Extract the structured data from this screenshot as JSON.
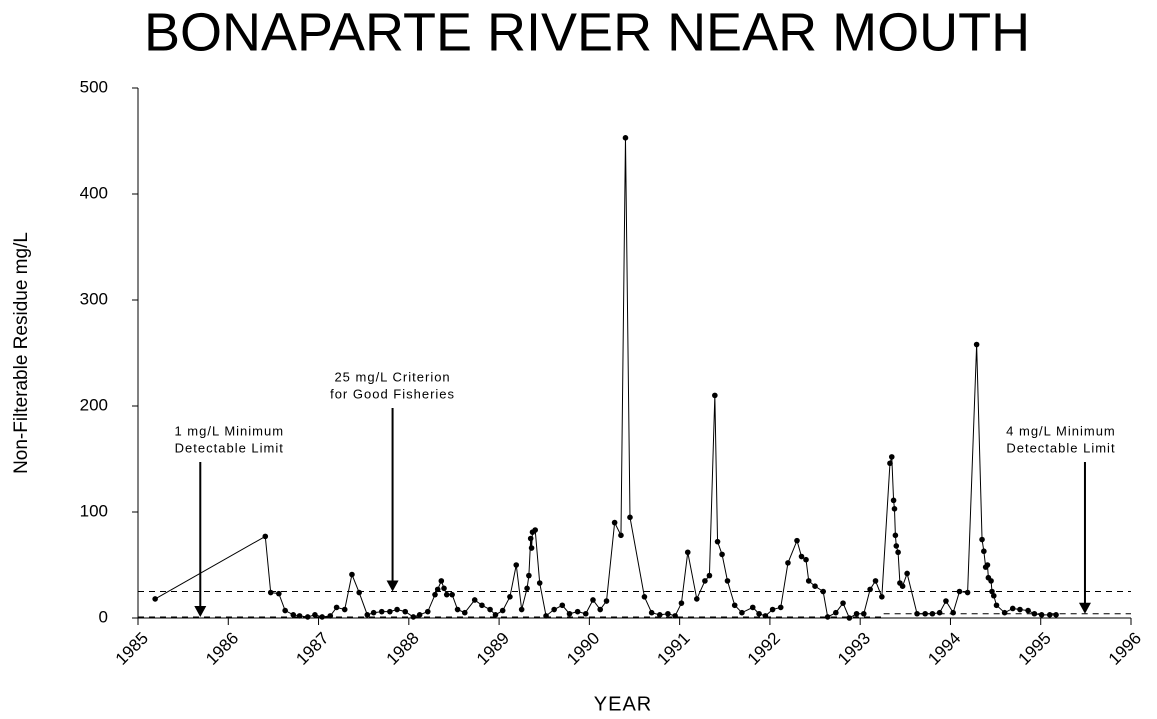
{
  "chart_data": {
    "type": "line",
    "title": "BONAPARTE RIVER NEAR MOUTH",
    "x_label": "YEAR",
    "y_label": "Non-Filterable Residue mg/L",
    "xlim": [
      1985,
      1996
    ],
    "xticks": [
      1985,
      1986,
      1987,
      1988,
      1989,
      1990,
      1991,
      1992,
      1993,
      1994,
      1995,
      1996
    ],
    "ylim": [
      0,
      500
    ],
    "yticks": [
      0,
      100,
      200,
      300,
      400,
      500
    ],
    "grid": false,
    "series": [
      {
        "color": "#000000",
        "x": [
          1985.19,
          1986.41,
          1986.47,
          1986.56,
          1986.63,
          1986.72,
          1986.79,
          1986.88,
          1986.96,
          1987.04,
          1987.13,
          1987.2,
          1987.29,
          1987.37,
          1987.45,
          1987.54,
          1987.61,
          1987.7,
          1987.79,
          1987.87,
          1987.96,
          1988.05,
          1988.12,
          1988.21,
          1988.29,
          1988.32,
          1988.36,
          1988.39,
          1988.42,
          1988.48,
          1988.54,
          1988.62,
          1988.73,
          1988.81,
          1988.9,
          1988.96,
          1989.04,
          1989.12,
          1989.19,
          1989.25,
          1989.31,
          1989.33,
          1989.35,
          1989.36,
          1989.37,
          1989.4,
          1989.45,
          1989.52,
          1989.61,
          1989.7,
          1989.78,
          1989.87,
          1989.96,
          1990.04,
          1990.12,
          1990.19,
          1990.28,
          1990.35,
          1990.4,
          1990.45,
          1990.61,
          1990.69,
          1990.78,
          1990.87,
          1990.95,
          1991.02,
          1991.09,
          1991.19,
          1991.28,
          1991.33,
          1991.39,
          1991.42,
          1991.47,
          1991.53,
          1991.61,
          1991.69,
          1991.81,
          1991.88,
          1991.95,
          1992.03,
          1992.12,
          1992.2,
          1992.3,
          1992.35,
          1992.4,
          1992.43,
          1992.5,
          1992.59,
          1992.64,
          1992.73,
          1992.81,
          1992.88,
          1992.96,
          1993.04,
          1993.11,
          1993.17,
          1993.24,
          1993.33,
          1993.35,
          1993.37,
          1993.38,
          1993.39,
          1993.4,
          1993.42,
          1993.44,
          1993.47,
          1993.52,
          1993.63,
          1993.72,
          1993.8,
          1993.88,
          1993.95,
          1994.03,
          1994.1,
          1994.19,
          1994.29,
          1994.35,
          1994.37,
          1994.39,
          1994.41,
          1994.42,
          1994.45,
          1994.46,
          1994.48,
          1994.51,
          1994.6,
          1994.69,
          1994.77,
          1994.86,
          1994.93,
          1995.01,
          1995.1,
          1995.17
        ],
        "values": [
          18,
          77,
          24,
          23,
          7,
          3,
          2,
          1,
          3,
          1,
          2,
          10,
          8,
          41,
          24,
          3,
          5,
          6,
          6,
          8,
          6,
          1,
          3,
          6,
          22,
          27,
          35,
          28,
          22,
          22,
          8,
          5,
          17,
          12,
          8,
          3,
          7,
          20,
          50,
          8,
          28,
          40,
          75,
          66,
          81,
          83,
          33,
          2,
          8,
          12,
          4,
          6,
          4,
          17,
          8,
          16,
          90,
          78,
          453,
          95,
          20,
          5,
          3,
          4,
          2,
          14,
          62,
          18,
          35,
          40,
          210,
          72,
          60,
          35,
          12,
          5,
          10,
          4,
          2,
          8,
          10,
          52,
          73,
          58,
          55,
          35,
          30,
          25,
          1,
          5,
          14,
          0,
          4,
          4,
          27,
          35,
          20,
          146,
          152,
          111,
          103,
          78,
          68,
          62,
          33,
          30,
          42,
          4,
          4,
          4,
          5,
          16,
          5,
          25,
          24,
          258,
          74,
          63,
          48,
          50,
          38,
          35,
          25,
          21,
          12,
          5,
          9,
          8,
          7,
          4,
          3,
          3,
          3
        ]
      }
    ],
    "reference_lines": [
      {
        "value": 25,
        "x_range": [
          1985,
          1996
        ]
      },
      {
        "value": 1,
        "x_range": [
          1985,
          1993.26
        ]
      },
      {
        "value": 4,
        "x_range": [
          1993.26,
          1996
        ]
      }
    ],
    "annotations": [
      {
        "lines": [
          "1 mg/L Minimum",
          "Detectable Limit"
        ],
        "x": 1985.69,
        "y": 1
      },
      {
        "lines": [
          "25 mg/L Criterion",
          "for Good Fisheries"
        ],
        "x": 1987.82,
        "y": 25
      },
      {
        "lines": [
          "4 mg/L Minimum",
          "Detectable Limit"
        ],
        "x": 1995.49,
        "y": 4
      }
    ]
  }
}
